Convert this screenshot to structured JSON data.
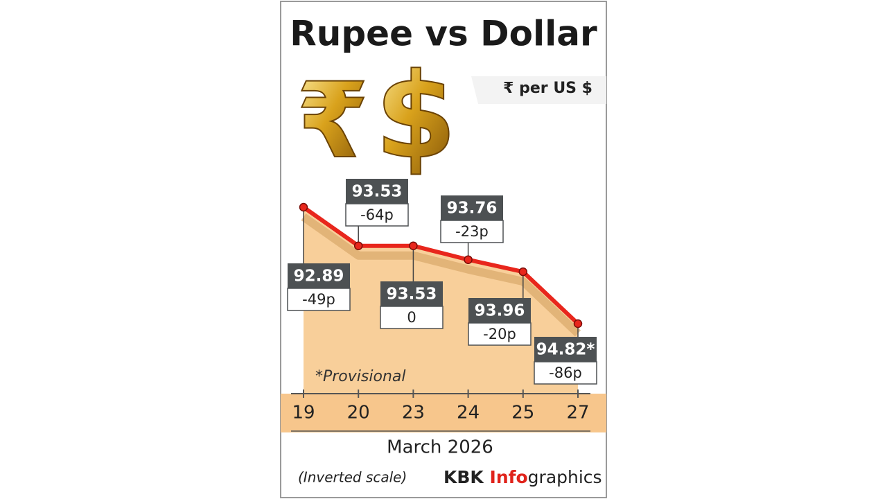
{
  "chart_data": {
    "type": "line",
    "title": "Rupee vs Dollar",
    "unit_label": "₹ per US $",
    "symbols": [
      "₹",
      "$"
    ],
    "categories": [
      "19",
      "20",
      "23",
      "24",
      "25",
      "27"
    ],
    "values": [
      92.89,
      93.53,
      93.53,
      93.76,
      93.96,
      94.82
    ],
    "value_labels": [
      "92.89",
      "93.53",
      "93.53",
      "93.76",
      "93.96",
      "94.82*"
    ],
    "change_labels": [
      "-49p",
      "-64p",
      "0",
      "-23p",
      "-20p",
      "-86p"
    ],
    "inverted": true,
    "color": "#e8261c",
    "annotation": "*Provisional",
    "x_label": "March 2026",
    "note": "(Inverted scale)",
    "source": {
      "brand": "KBK ",
      "highlight": "Info",
      "rest": "graphics"
    }
  }
}
